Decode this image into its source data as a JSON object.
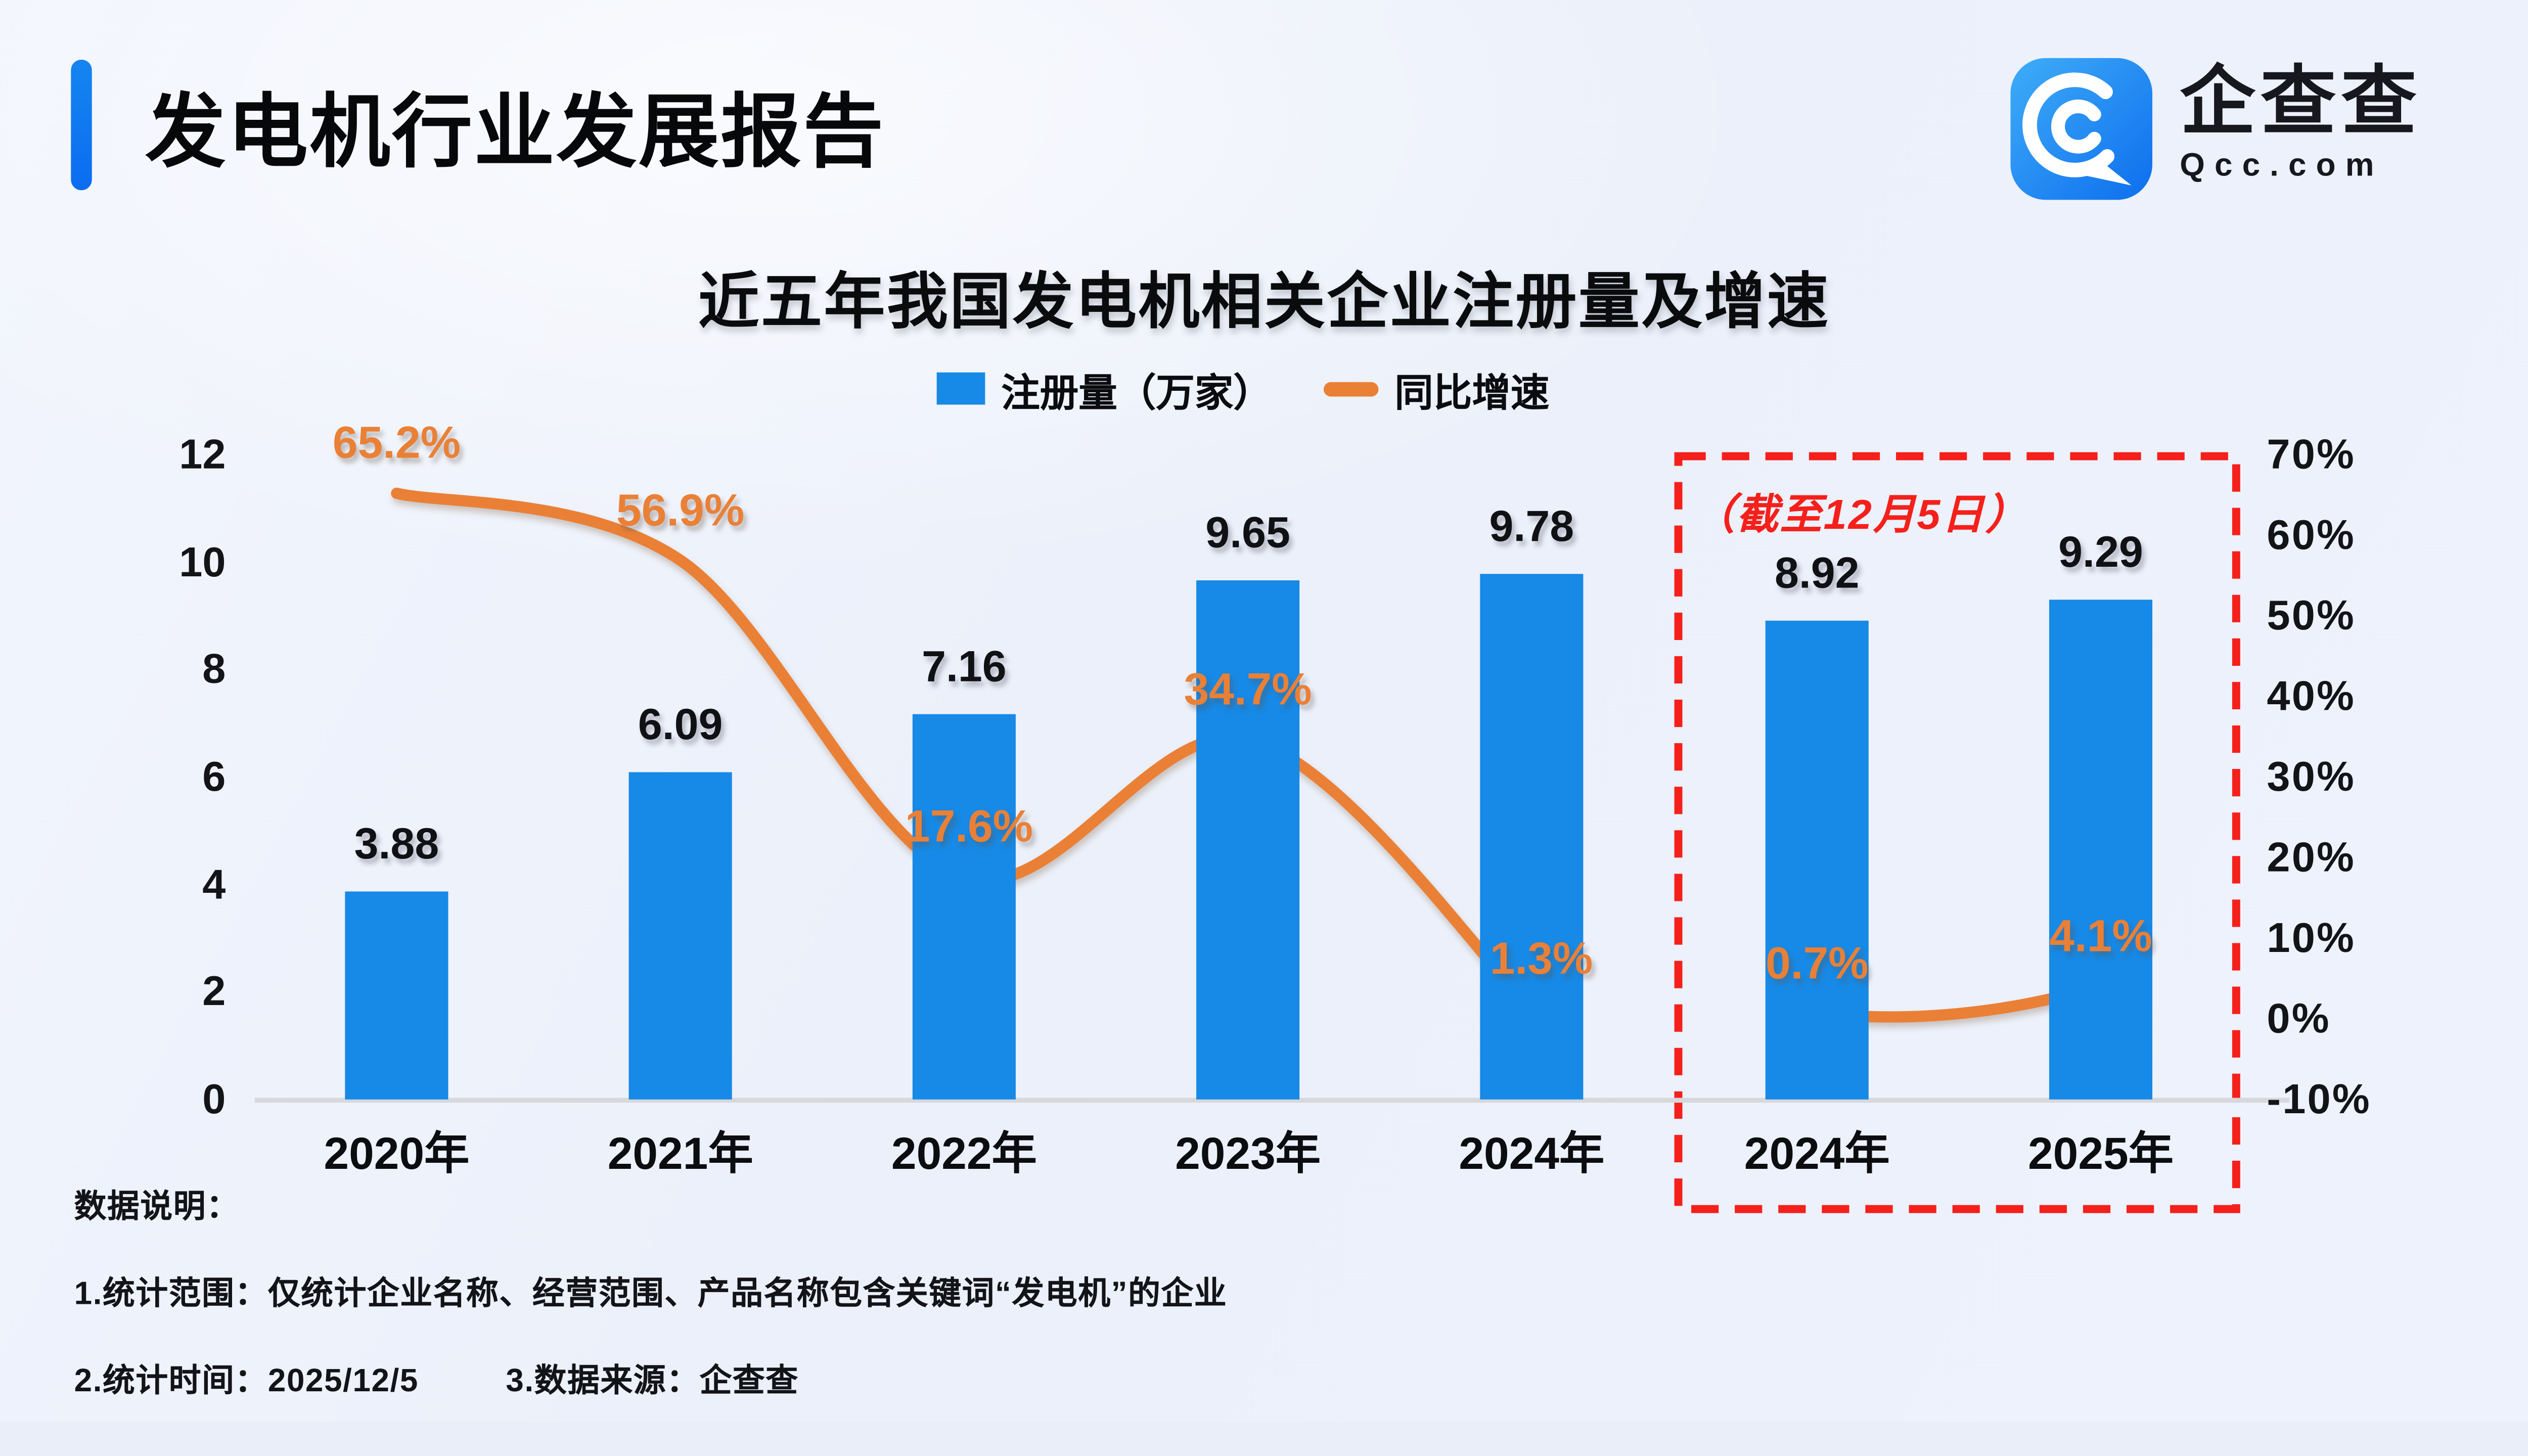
{
  "header": {
    "accent_color": "#1585f0",
    "title": "发电机行业发展报告",
    "logo": {
      "name": "企查查",
      "domain": "Qcc.com"
    }
  },
  "chart": {
    "title": "近五年我国发电机相关企业注册量及增速",
    "legend": {
      "bar_label": "注册量（万家）",
      "line_label": "同比增速"
    },
    "annotation": "（截至12月5日）"
  },
  "chart_data": {
    "type": "bar",
    "title": "近五年我国发电机相关企业注册量及增速",
    "categories": [
      "2020年",
      "2021年",
      "2022年",
      "2023年",
      "2024年",
      "2024年",
      "2025年"
    ],
    "series": [
      {
        "name": "注册量（万家）",
        "type": "bar",
        "unit": "万家",
        "values": [
          3.88,
          6.09,
          7.16,
          9.65,
          9.78,
          8.92,
          9.29
        ]
      },
      {
        "name": "同比增速",
        "type": "line",
        "unit": "%",
        "smooth": true,
        "values": [
          65.2,
          56.9,
          17.6,
          34.7,
          1.3,
          0.7,
          4.1
        ],
        "line_segments": [
          [
            0,
            4
          ],
          [
            5,
            6
          ]
        ]
      }
    ],
    "left_axis": {
      "ticks": [
        "12",
        "10",
        "8",
        "6",
        "4",
        "2",
        "0"
      ],
      "min": 0,
      "max": 12
    },
    "right_axis": {
      "ticks": [
        "70%",
        "60%",
        "50%",
        "40%",
        "30%",
        "20%",
        "10%",
        "0%",
        "-10%"
      ],
      "min_pct": -10,
      "max_pct": 70
    },
    "grid": false,
    "legend_position": "top",
    "highlight_box": {
      "label": "（截至12月5日）",
      "category_indexes": [
        5,
        6
      ]
    },
    "colors": {
      "bar": "#1789e6",
      "line": "#ea8036",
      "highlight": "#f5201b"
    }
  },
  "footer": {
    "heading": "数据说明：",
    "note1": "1.统计范围：仅统计企业名称、经营范围、产品名称包含关键词“发电机”的企业",
    "note2": "2.统计时间：2025/12/5",
    "note3": "3.数据来源：企查查"
  }
}
